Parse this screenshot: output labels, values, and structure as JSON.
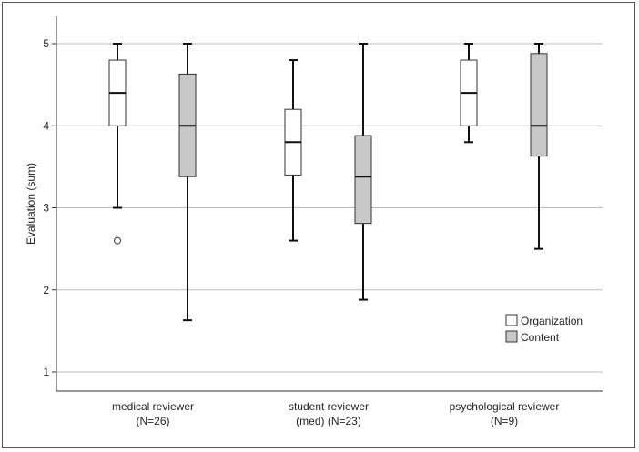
{
  "chart_data": {
    "type": "boxplot",
    "title": "",
    "xlabel": "",
    "ylabel": "Evaluation (sum)",
    "ylim": [
      0.6,
      5.3
    ],
    "yticks": [
      1,
      2,
      3,
      4,
      5
    ],
    "grid": true,
    "legend_position": "bottom-right",
    "categories": [
      {
        "line1": "medical reviewer",
        "line2": "(N=26)"
      },
      {
        "line1": "student reviewer",
        "line2": "(med) (N=23)"
      },
      {
        "line1": "psychological reviewer",
        "line2": "(N=9)"
      }
    ],
    "series": [
      {
        "name": "Organization",
        "color": "#ffffff",
        "boxes": [
          {
            "min": 3.0,
            "q1": 4.0,
            "median": 4.4,
            "q3": 4.8,
            "max": 5.0,
            "outliers": [
              2.6
            ]
          },
          {
            "min": 2.6,
            "q1": 3.4,
            "median": 3.8,
            "q3": 4.2,
            "max": 4.8,
            "outliers": []
          },
          {
            "min": 3.8,
            "q1": 4.0,
            "median": 4.4,
            "q3": 4.8,
            "max": 5.0,
            "outliers": []
          }
        ]
      },
      {
        "name": "Content",
        "color": "#c8c8c8",
        "boxes": [
          {
            "min": 1.63,
            "q1": 3.38,
            "median": 4.0,
            "q3": 4.63,
            "max": 5.0,
            "outliers": []
          },
          {
            "min": 1.88,
            "q1": 2.81,
            "median": 3.38,
            "q3": 3.88,
            "max": 5.0,
            "outliers": []
          },
          {
            "min": 2.5,
            "q1": 3.63,
            "median": 4.0,
            "q3": 4.88,
            "max": 5.0,
            "outliers": []
          }
        ]
      }
    ]
  }
}
